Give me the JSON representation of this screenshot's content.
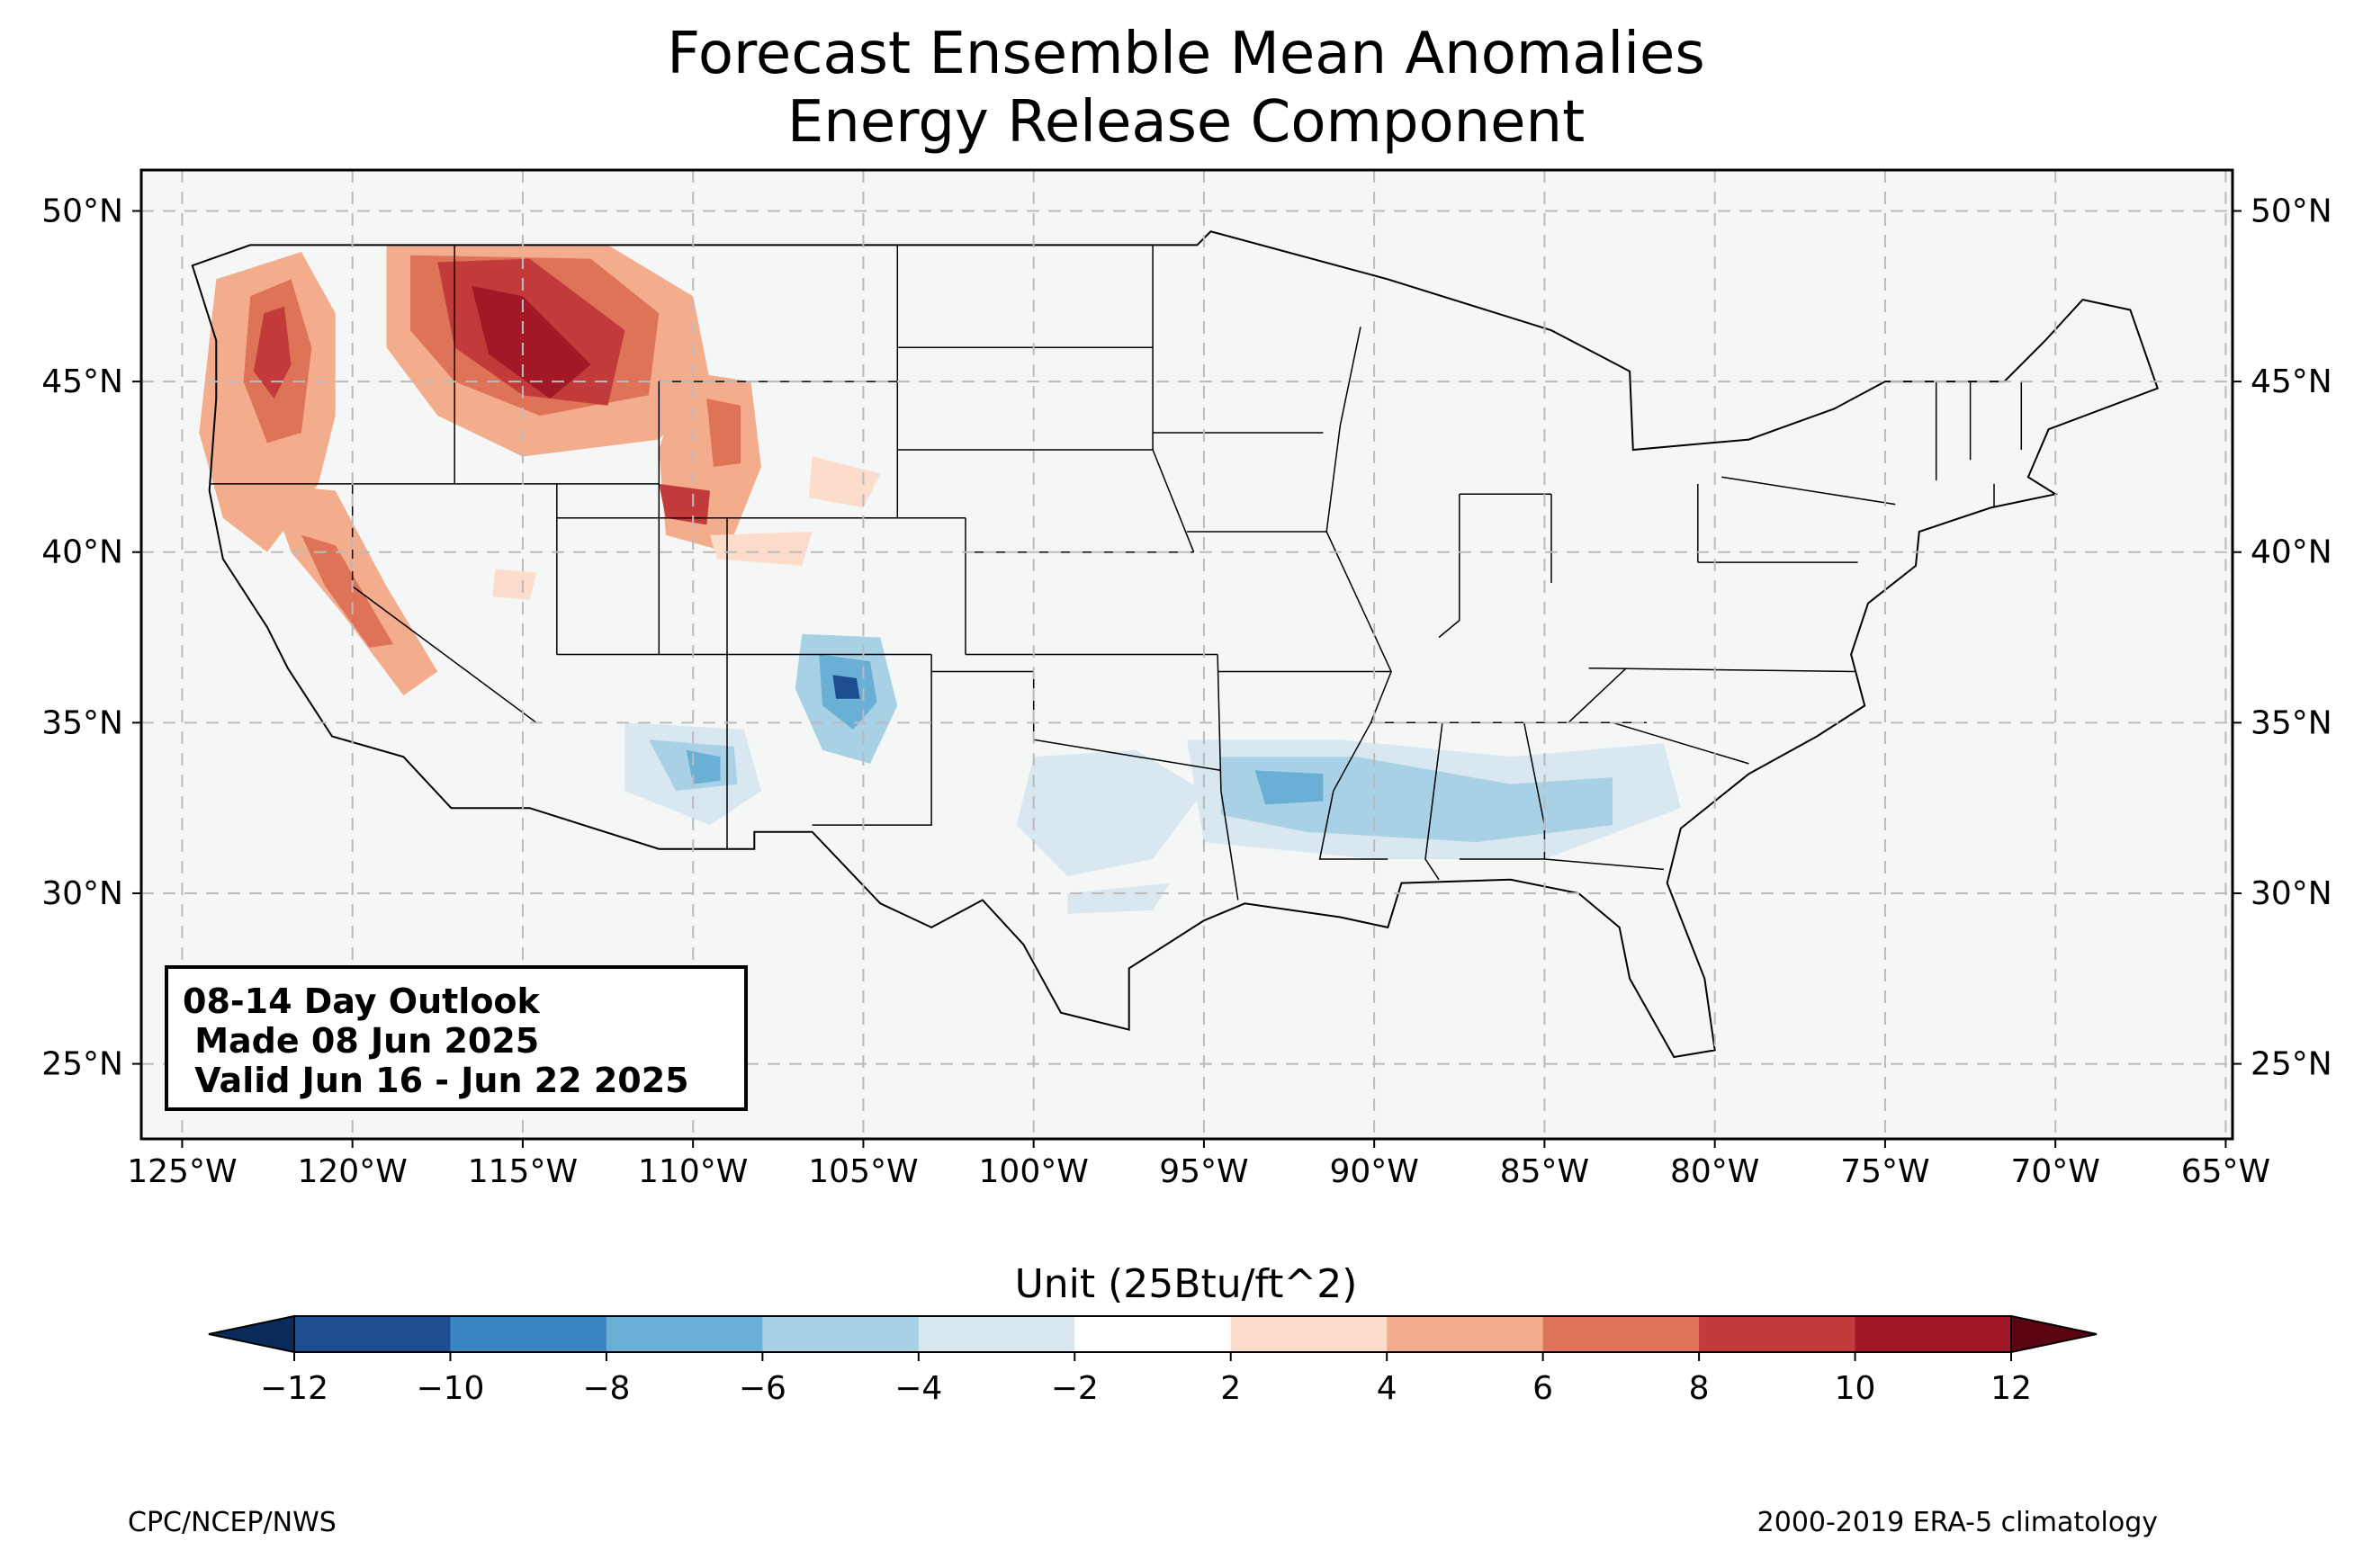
{
  "title": {
    "line1": "Forecast Ensemble Mean Anomalies",
    "line2": "Energy Release Component"
  },
  "map": {
    "lon_ticks": [
      "125°W",
      "120°W",
      "115°W",
      "110°W",
      "105°W",
      "100°W",
      "95°W",
      "90°W",
      "85°W",
      "80°W",
      "75°W",
      "70°W",
      "65°W"
    ],
    "lat_ticks": [
      "50°N",
      "45°N",
      "40°N",
      "35°N",
      "30°N",
      "25°N"
    ],
    "lon_values": [
      -125,
      -120,
      -115,
      -110,
      -105,
      -100,
      -95,
      -90,
      -85,
      -80,
      -75,
      -70,
      -65
    ],
    "lat_values": [
      50,
      45,
      40,
      35,
      30,
      25
    ],
    "lon_range": [
      -126.2,
      -64.8
    ],
    "lat_range": [
      22.8,
      51.2
    ],
    "gridlines": true,
    "land_color": "#f5f7f7"
  },
  "outlook": {
    "line1": "08-14 Day Outlook",
    "line2": " Made 08 Jun 2025",
    "line3": " Valid Jun 16 - Jun 22 2025"
  },
  "colorbar": {
    "label": "Unit (25Btu/ft^2)",
    "ticks": [
      "−12",
      "−10",
      "−8",
      "−6",
      "−4",
      "−2",
      "2",
      "4",
      "6",
      "8",
      "10",
      "12"
    ],
    "colors": [
      "#1b4d8f",
      "#3a86c0",
      "#6ab0d6",
      "#a8d1e6",
      "#d8e7f0",
      "#ffffff",
      "#fcdccb",
      "#f3ad8c",
      "#de7358",
      "#c23b3a",
      "#a21826"
    ],
    "under_color": "#082b5c",
    "over_color": "#5b0513"
  },
  "footer": {
    "left": "CPC/NCEP/NWS",
    "right": "2000-2019 ERA-5 climatology"
  }
}
